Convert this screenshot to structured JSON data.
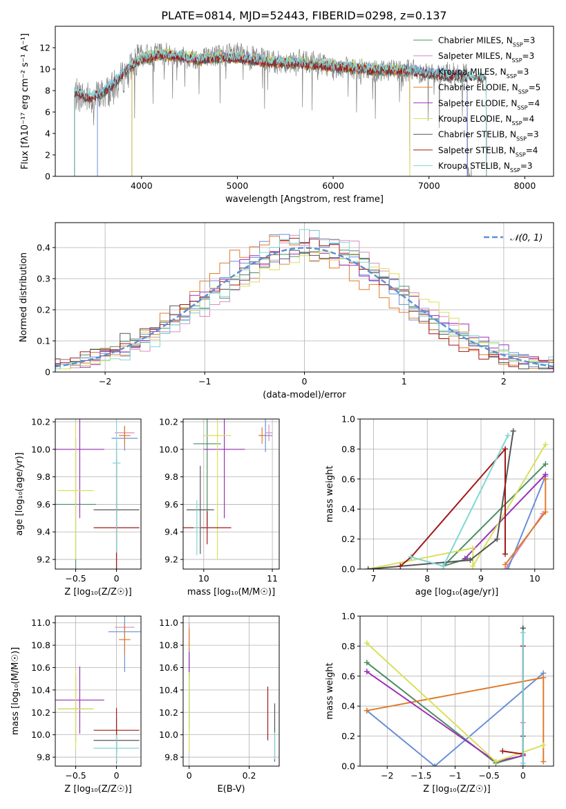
{
  "figure": {
    "title": "PLATE=0814, MJD=52443, FIBERID=0298, z=0.137"
  },
  "colors": {
    "Chabrier MILES": "#4d8c64",
    "Salpeter MILES": "#d98cba",
    "Kroupa MILES": "#6a8fd8",
    "Chabrier ELODIE": "#e07a2a",
    "Salpeter ELODIE": "#9b30b8",
    "Kroupa ELODIE": "#d8e05a",
    "Chabrier STELIB": "#555555",
    "Salpeter STELIB": "#a01818",
    "Kroupa STELIB": "#7fd6d6",
    "gaussian": "#5b8fd6"
  },
  "chart_data": [
    {
      "id": "spectrum",
      "type": "line",
      "title": "PLATE=0814, MJD=52443, FIBERID=0298, z=0.137",
      "xlabel": "wavelength [Angstrom, rest frame]",
      "ylabel": "Flux [fλ10⁻¹⁷ erg cm⁻² s⁻¹ A⁻¹]",
      "xlim": [
        3100,
        8300
      ],
      "ylim": [
        0,
        14
      ],
      "xticks": [
        4000,
        5000,
        6000,
        7000,
        8000
      ],
      "yticks": [
        0,
        2,
        4,
        6,
        8,
        10,
        12
      ],
      "grid": false,
      "legend": "right",
      "legend_entries": [
        {
          "label": "Chabrier MILES, N",
          "sub": "SSP",
          "tail": "=3"
        },
        {
          "label": "Salpeter MILES, N",
          "sub": "SSP",
          "tail": "=3"
        },
        {
          "label": "Kroupa MILES, N",
          "sub": "SSP",
          "tail": "=3"
        },
        {
          "label": "Chabrier ELODIE, N",
          "sub": "SSP",
          "tail": "=5"
        },
        {
          "label": "Salpeter ELODIE, N",
          "sub": "SSP",
          "tail": "=4"
        },
        {
          "label": "Kroupa ELODIE, N",
          "sub": "SSP",
          "tail": "=4"
        },
        {
          "label": "Chabrier STELIB, N",
          "sub": "SSP",
          "tail": "=3"
        },
        {
          "label": "Salpeter STELIB, N",
          "sub": "SSP",
          "tail": "=4"
        },
        {
          "label": "Kroupa STELIB, N",
          "sub": "SSP",
          "tail": "=3"
        }
      ],
      "data_envelope": {
        "x": [
          3300,
          3500,
          3700,
          3900,
          4000,
          4200,
          4400,
          4600,
          4800,
          5000,
          5200,
          5400,
          5600,
          5800,
          6000,
          6200,
          6400,
          6600,
          6800,
          7000,
          7200,
          7400
        ],
        "y": [
          7.6,
          7.3,
          8.2,
          10.2,
          11.2,
          11.5,
          11.2,
          11.0,
          11.3,
          11.4,
          11.0,
          10.6,
          10.8,
          10.7,
          10.2,
          10.0,
          9.8,
          10.0,
          9.9,
          9.6,
          9.6,
          9.4
        ]
      },
      "model_envelope": {
        "x": [
          3300,
          3450,
          3600,
          3700,
          3850,
          4000,
          4200,
          4400,
          4600,
          4800,
          5000,
          5300,
          5600,
          6000,
          6400,
          6800,
          7000,
          7400,
          7600
        ],
        "y": [
          7.8,
          7.4,
          7.8,
          8.6,
          10.0,
          11.0,
          11.4,
          11.2,
          10.9,
          11.1,
          11.1,
          10.7,
          10.6,
          10.3,
          10.0,
          9.9,
          9.6,
          9.3,
          9.2
        ]
      }
    },
    {
      "id": "residuals",
      "type": "histogram",
      "xlabel": "(data-model)/error",
      "ylabel": "Normed distribution",
      "xlim": [
        -2.5,
        2.5
      ],
      "ylim": [
        0,
        0.48
      ],
      "xticks": [
        -2,
        -1,
        0,
        1,
        2
      ],
      "yticks": [
        0.0,
        0.1,
        0.2,
        0.3,
        0.4
      ],
      "grid": true,
      "legend": "top-right",
      "gaussian_label": "𝒩(0, 1)",
      "bin_width": 0.1
    },
    {
      "id": "age_vs_Z",
      "type": "scatter",
      "xlabel": "Z [log₁₀(Z/Z☉)]",
      "ylabel": "age  [log₁₀(age/yr)]",
      "xlim": [
        -0.75,
        0.3
      ],
      "ylim": [
        9.13,
        10.22
      ],
      "xticks": [
        -0.5,
        0.0
      ],
      "yticks": [
        9.2,
        9.4,
        9.6,
        9.8,
        10.0,
        10.2
      ],
      "points": [
        {
          "model": "Chabrier MILES",
          "x": -0.5,
          "xerr": 0.25,
          "y": 9.6,
          "yerr": 0.48
        },
        {
          "model": "Salpeter MILES",
          "x": 0.1,
          "xerr": 0.12,
          "y": 10.12,
          "yerr": 0.04
        },
        {
          "model": "Kroupa MILES",
          "x": 0.1,
          "xerr": 0.16,
          "y": 10.08,
          "yerr": 0.09
        },
        {
          "model": "Chabrier ELODIE",
          "x": 0.1,
          "xerr": 0.07,
          "y": 10.1,
          "yerr": 0.07
        },
        {
          "model": "Salpeter ELODIE",
          "x": -0.45,
          "xerr": 0.3,
          "y": 10.0,
          "yerr": 0.5
        },
        {
          "model": "Kroupa ELODIE",
          "x": -0.5,
          "xerr": 0.22,
          "y": 9.7,
          "yerr": 0.5
        },
        {
          "model": "Chabrier STELIB",
          "x": 0.0,
          "xerr": 0.28,
          "y": 9.56,
          "yerr": 0.5
        },
        {
          "model": "Salpeter STELIB",
          "x": 0.0,
          "xerr": 0.28,
          "y": 9.43,
          "yerr": 0.5
        },
        {
          "model": "Kroupa STELIB",
          "x": 0.0,
          "xerr": 0.05,
          "y": 9.9,
          "yerr": 0.65
        }
      ]
    },
    {
      "id": "age_vs_mass",
      "type": "scatter",
      "xlabel": "mass [log₁₀(M/M☉)]",
      "ylabel": "",
      "xlim": [
        9.7,
        11.1
      ],
      "ylim": [
        9.13,
        10.22
      ],
      "xticks": [
        10,
        11
      ],
      "yticks": [
        9.2,
        9.4,
        9.6,
        9.8,
        10.0,
        10.2
      ],
      "points": [
        {
          "model": "Chabrier MILES",
          "x": 10.05,
          "xerr": 0.2,
          "y": 10.04,
          "yerr": 0.6
        },
        {
          "model": "Salpeter MILES",
          "x": 10.95,
          "xerr": 0.05,
          "y": 10.12,
          "yerr": 0.06
        },
        {
          "model": "Kroupa MILES",
          "x": 10.9,
          "xerr": 0.1,
          "y": 10.1,
          "yerr": 0.12
        },
        {
          "model": "Chabrier ELODIE",
          "x": 10.85,
          "xerr": 0.05,
          "y": 10.1,
          "yerr": 0.06
        },
        {
          "model": "Salpeter ELODIE",
          "x": 10.3,
          "xerr": 0.3,
          "y": 10.0,
          "yerr": 0.5
        },
        {
          "model": "Kroupa ELODIE",
          "x": 10.2,
          "xerr": 0.2,
          "y": 10.1,
          "yerr": 0.9
        },
        {
          "model": "Chabrier STELIB",
          "x": 9.95,
          "xerr": 0.2,
          "y": 9.56,
          "yerr": 0.32
        },
        {
          "model": "Salpeter STELIB",
          "x": 10.05,
          "xerr": 0.35,
          "y": 9.43,
          "yerr": 0.12
        },
        {
          "model": "Kroupa STELIB",
          "x": 9.9,
          "xerr": 0.05,
          "y": 9.43,
          "yerr": 0.2
        }
      ]
    },
    {
      "id": "weight_vs_age",
      "type": "line",
      "xlabel": "age  [log₁₀(age/yr)]",
      "ylabel": "mass weight",
      "xlim": [
        6.75,
        10.35
      ],
      "ylim": [
        0,
        1.0
      ],
      "xticks": [
        7,
        8,
        9,
        10
      ],
      "yticks": [
        0.0,
        0.2,
        0.4,
        0.6,
        0.8,
        1.0
      ],
      "grid": true,
      "series": [
        {
          "model": "Chabrier MILES",
          "x": [
            8.75,
            8.3,
            10.2
          ],
          "y": [
            0.07,
            0.02,
            0.7
          ]
        },
        {
          "model": "Salpeter MILES",
          "x": [
            9.45,
            10.15
          ],
          "y": [
            0.0,
            0.37
          ]
        },
        {
          "model": "Kroupa MILES",
          "x": [
            9.5,
            10.2
          ],
          "y": [
            0.0,
            0.62
          ]
        },
        {
          "model": "Chabrier ELODIE",
          "x": [
            9.45,
            10.2,
            10.2
          ],
          "y": [
            0.03,
            0.38,
            0.6
          ]
        },
        {
          "model": "Salpeter ELODIE",
          "x": [
            8.7,
            10.2
          ],
          "y": [
            0.07,
            0.63
          ]
        },
        {
          "model": "Kroupa ELODIE",
          "x": [
            6.9,
            8.85,
            8.85,
            10.2
          ],
          "y": [
            0.0,
            0.14,
            0.02,
            0.83
          ]
        },
        {
          "model": "Chabrier STELIB",
          "x": [
            6.9,
            8.8,
            9.3,
            9.6
          ],
          "y": [
            0.0,
            0.06,
            0.2,
            0.92
          ]
        },
        {
          "model": "Salpeter STELIB",
          "x": [
            7.5,
            7.7,
            9.45,
            9.45
          ],
          "y": [
            0.02,
            0.08,
            0.8,
            0.1
          ]
        },
        {
          "model": "Kroupa STELIB",
          "x": [
            7.7,
            8.3,
            9.5
          ],
          "y": [
            0.08,
            0.02,
            0.89
          ]
        }
      ]
    },
    {
      "id": "mass_vs_Z",
      "type": "scatter",
      "xlabel": "Z [log₁₀(Z/Z☉)]",
      "ylabel": "mass [log₁₀(M/M☉)]",
      "xlim": [
        -0.75,
        0.3
      ],
      "ylim": [
        9.72,
        11.06
      ],
      "xticks": [
        -0.5,
        0.0
      ],
      "yticks": [
        9.8,
        10.0,
        10.2,
        10.4,
        10.6,
        10.8,
        11.0
      ],
      "points": [
        {
          "model": "Chabrier MILES",
          "x": -0.5,
          "xerr": 0.22,
          "y": 10.23,
          "yerr": 0.3
        },
        {
          "model": "Salpeter MILES",
          "x": 0.1,
          "xerr": 0.12,
          "y": 10.96,
          "yerr": 0.04
        },
        {
          "model": "Kroupa MILES",
          "x": 0.1,
          "xerr": 0.2,
          "y": 10.92,
          "yerr": 0.36
        },
        {
          "model": "Chabrier ELODIE",
          "x": 0.1,
          "xerr": 0.07,
          "y": 10.85,
          "yerr": 0.13
        },
        {
          "model": "Salpeter ELODIE",
          "x": -0.45,
          "xerr": 0.3,
          "y": 10.31,
          "yerr": 0.3
        },
        {
          "model": "Kroupa ELODIE",
          "x": -0.5,
          "xerr": 0.22,
          "y": 10.23,
          "yerr": 0.35
        },
        {
          "model": "Chabrier STELIB",
          "x": 0.0,
          "xerr": 0.28,
          "y": 9.95,
          "yerr": 0.2
        },
        {
          "model": "Salpeter STELIB",
          "x": 0.0,
          "xerr": 0.28,
          "y": 10.04,
          "yerr": 0.2
        },
        {
          "model": "Kroupa STELIB",
          "x": 0.0,
          "xerr": 0.28,
          "y": 9.88,
          "yerr": 0.12
        }
      ]
    },
    {
      "id": "mass_vs_ebv",
      "type": "scatter",
      "xlabel": "E(B-V)",
      "ylabel": "",
      "xlim": [
        -0.02,
        0.3
      ],
      "ylim": [
        9.72,
        11.06
      ],
      "xticks": [
        0.0,
        0.2
      ],
      "yticks": [
        9.8,
        10.0,
        10.2,
        10.4,
        10.6,
        10.8,
        11.0
      ],
      "points": [
        {
          "model": "Chabrier MILES",
          "x": 0.0,
          "xerr": 0,
          "y": 10.3,
          "yerr": 0.25
        },
        {
          "model": "Salpeter MILES",
          "x": 0.0,
          "xerr": 0,
          "y": 10.9,
          "yerr": 0.1
        },
        {
          "model": "Kroupa MILES",
          "x": 0.0,
          "xerr": 0,
          "y": 10.65,
          "yerr": 0.12
        },
        {
          "model": "Chabrier ELODIE",
          "x": 0.0,
          "xerr": 0,
          "y": 10.85,
          "yerr": 0.1
        },
        {
          "model": "Salpeter ELODIE",
          "x": 0.0,
          "xerr": 0,
          "y": 10.62,
          "yerr": 0.12
        },
        {
          "model": "Kroupa ELODIE",
          "x": 0.0,
          "xerr": 0,
          "y": 10.2,
          "yerr": 0.36
        },
        {
          "model": "Chabrier STELIB",
          "x": 0.285,
          "xerr": 0,
          "y": 10.02,
          "yerr": 0.26
        },
        {
          "model": "Salpeter STELIB",
          "x": 0.262,
          "xerr": 0,
          "y": 10.19,
          "yerr": 0.24
        },
        {
          "model": "Kroupa STELIB",
          "x": 0.285,
          "xerr": 0,
          "y": 9.9,
          "yerr": 0.12
        }
      ]
    },
    {
      "id": "weight_vs_Z",
      "type": "line",
      "xlabel": "Z [log₁₀(Z/Z☉)]",
      "ylabel": "mass weight",
      "xlim": [
        -2.4,
        0.45
      ],
      "ylim": [
        0,
        1.0
      ],
      "xticks": [
        -2.0,
        -1.5,
        -1.0,
        -0.5,
        0.0
      ],
      "yticks": [
        0.0,
        0.2,
        0.4,
        0.6,
        0.8,
        1.0
      ],
      "grid": true,
      "series": [
        {
          "model": "Chabrier MILES",
          "x": [
            -2.3,
            -0.4,
            0.0
          ],
          "y": [
            0.69,
            0.02,
            0.07
          ]
        },
        {
          "model": "Salpeter MILES",
          "x": [
            0.0,
            0.0
          ],
          "y": [
            0.0,
            0.29
          ]
        },
        {
          "model": "Kroupa MILES",
          "x": [
            -2.3,
            -1.3,
            0.3
          ],
          "y": [
            0.37,
            0.0,
            0.62
          ]
        },
        {
          "model": "Chabrier ELODIE",
          "x": [
            -2.3,
            0.3,
            0.3
          ],
          "y": [
            0.37,
            0.59,
            0.03
          ]
        },
        {
          "model": "Salpeter ELODIE",
          "x": [
            -2.3,
            -0.4,
            0.0
          ],
          "y": [
            0.63,
            0.03,
            0.07
          ]
        },
        {
          "model": "Kroupa ELODIE",
          "x": [
            -2.3,
            -0.4,
            0.3
          ],
          "y": [
            0.82,
            0.03,
            0.14
          ]
        },
        {
          "model": "Chabrier STELIB",
          "x": [
            0.0,
            0.0,
            0.0
          ],
          "y": [
            0.0,
            0.2,
            0.92
          ]
        },
        {
          "model": "Salpeter STELIB",
          "x": [
            -0.3,
            0.0,
            0.0
          ],
          "y": [
            0.1,
            0.08,
            0.8
          ]
        },
        {
          "model": "Kroupa STELIB",
          "x": [
            0.0,
            0.0
          ],
          "y": [
            0.02,
            0.89
          ]
        }
      ]
    }
  ]
}
